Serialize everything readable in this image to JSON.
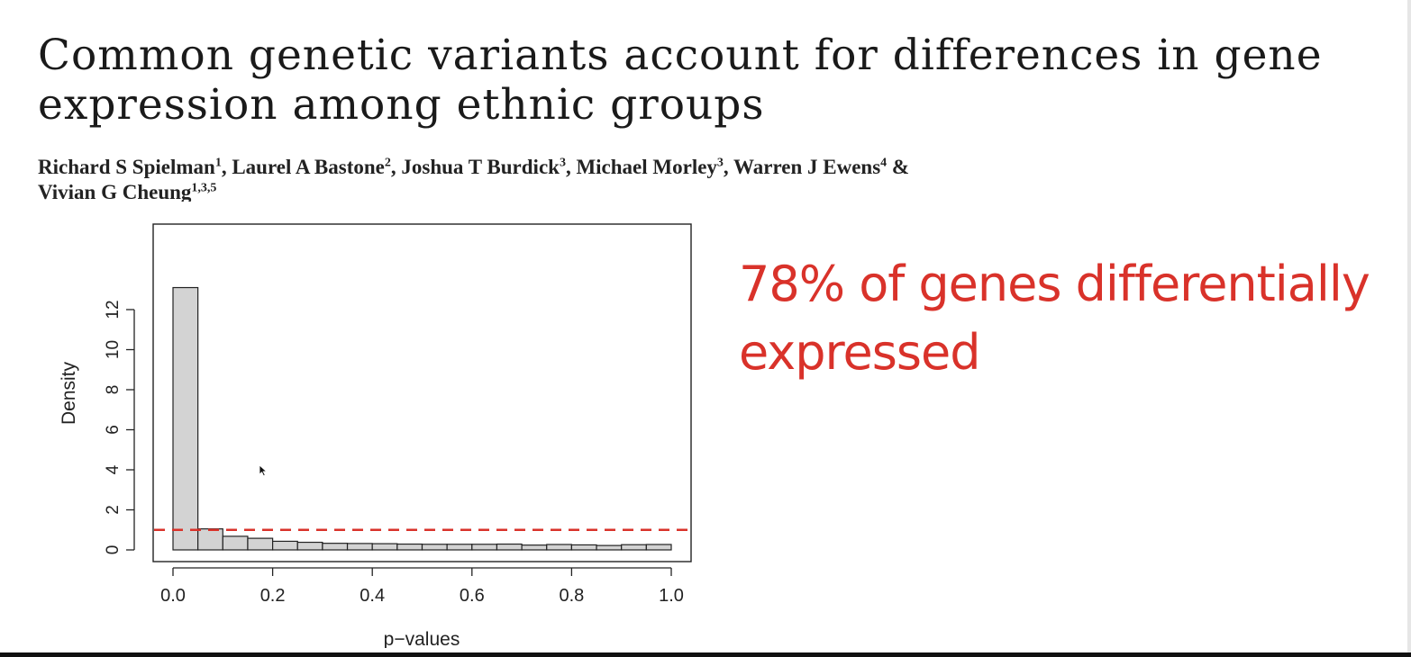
{
  "slide": {
    "title": "Common genetic variants account for differences in gene expression among ethnic groups",
    "authors": [
      {
        "name": "Richard S Spielman",
        "aff": "1"
      },
      {
        "name": "Laurel A Bastone",
        "aff": "2"
      },
      {
        "name": "Joshua T Burdick",
        "aff": "3"
      },
      {
        "name": "Michael Morley",
        "aff": "3"
      },
      {
        "name": "Warren J Ewens",
        "aff": "4"
      },
      {
        "name": "Vivian G Cheung",
        "aff": "1,3,5"
      }
    ],
    "callout": "78% of genes differentially expressed",
    "cursor_icon": "arrow-cursor-icon",
    "colors": {
      "callout": "#d9322a",
      "bar_fill": "#d3d3d3",
      "bar_stroke": "#222222",
      "reference_line": "#d9322a"
    }
  },
  "chart_data": {
    "type": "bar",
    "subtype": "histogram",
    "xlabel": "p−values",
    "ylabel": "Density",
    "xlim": [
      0,
      1
    ],
    "ylim": [
      0,
      13
    ],
    "bin_width": 0.05,
    "bins_start": [
      0.0,
      0.05,
      0.1,
      0.15,
      0.2,
      0.25,
      0.3,
      0.35,
      0.4,
      0.45,
      0.5,
      0.55,
      0.6,
      0.65,
      0.7,
      0.75,
      0.8,
      0.85,
      0.9,
      0.95
    ],
    "values": [
      13.1,
      1.05,
      0.68,
      0.58,
      0.43,
      0.38,
      0.33,
      0.32,
      0.31,
      0.29,
      0.28,
      0.28,
      0.28,
      0.29,
      0.24,
      0.27,
      0.25,
      0.22,
      0.26,
      0.27
    ],
    "x_ticks": [
      0.0,
      0.2,
      0.4,
      0.6,
      0.8,
      1.0
    ],
    "x_tick_labels": [
      "0.0",
      "0.2",
      "0.4",
      "0.6",
      "0.8",
      "1.0"
    ],
    "y_ticks": [
      0,
      2,
      4,
      6,
      8,
      10,
      12
    ],
    "y_tick_labels": [
      "0",
      "2",
      "4",
      "6",
      "8",
      "10",
      "12"
    ],
    "reference_line": {
      "y": 1.0,
      "style": "dashed"
    },
    "grid": false,
    "legend": "none"
  }
}
